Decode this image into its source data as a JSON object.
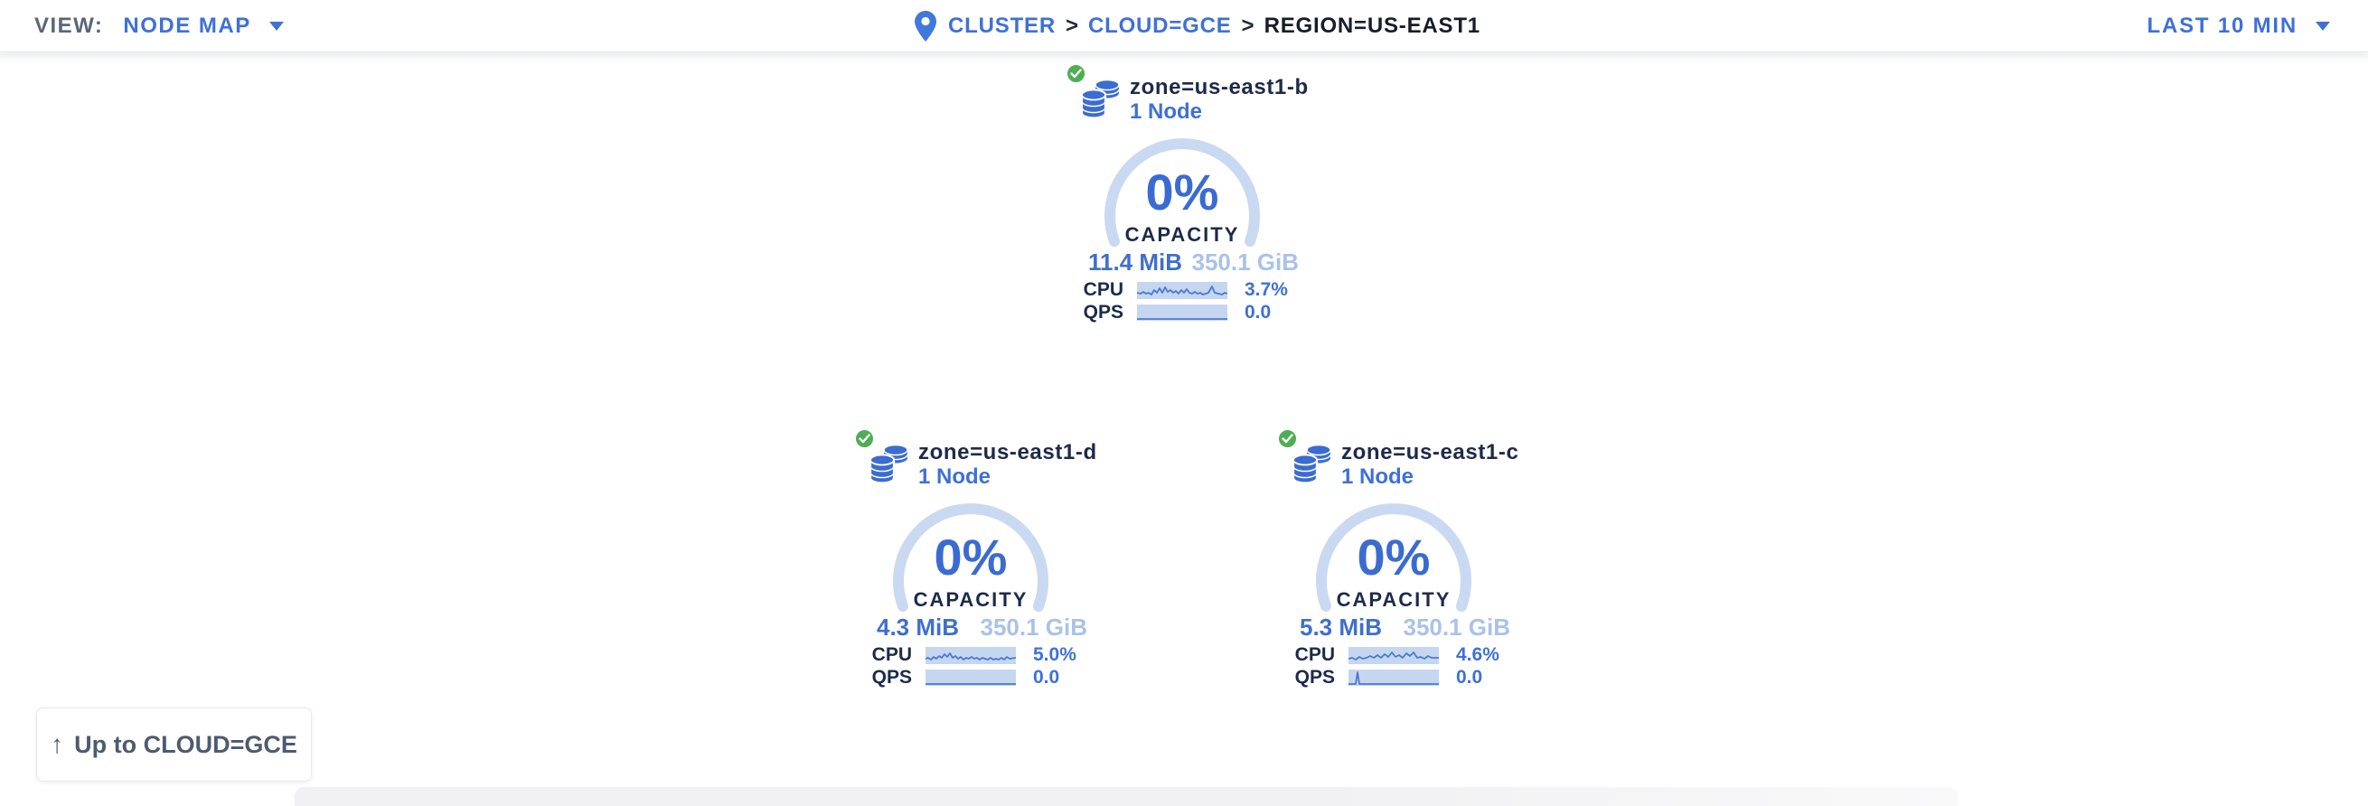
{
  "toolbar": {
    "view_label": "VIEW:",
    "view_value": "NODE MAP",
    "time_range": "LAST 10 MIN"
  },
  "breadcrumb": {
    "separator": ">",
    "items": [
      {
        "label": "CLUSTER"
      },
      {
        "label": "CLOUD=GCE"
      },
      {
        "label": "REGION=US-EAST1"
      }
    ]
  },
  "up_button": {
    "arrow": "↑",
    "label": "Up to CLOUD=GCE"
  },
  "zones": [
    {
      "name": "zone=us-east1-b",
      "nodes": "1 Node",
      "capacity_pct": "0%",
      "capacity_label": "CAPACITY",
      "used": "11.4 MiB",
      "total": "350.1 GiB",
      "cpu_label": "CPU",
      "cpu_pct": "3.7%",
      "qps_label": "QPS",
      "qps_value": "0.0",
      "status": "healthy"
    },
    {
      "name": "zone=us-east1-d",
      "nodes": "1 Node",
      "capacity_pct": "0%",
      "capacity_label": "CAPACITY",
      "used": "4.3 MiB",
      "total": "350.1 GiB",
      "cpu_label": "CPU",
      "cpu_pct": "5.0%",
      "qps_label": "QPS",
      "qps_value": "0.0",
      "status": "healthy"
    },
    {
      "name": "zone=us-east1-c",
      "nodes": "1 Node",
      "capacity_pct": "0%",
      "capacity_label": "CAPACITY",
      "used": "5.3 MiB",
      "total": "350.1 GiB",
      "cpu_label": "CPU",
      "cpu_pct": "4.6%",
      "qps_label": "QPS",
      "qps_value": "0.0",
      "status": "healthy"
    }
  ],
  "colors": {
    "accent_blue": "#3f70d8",
    "light_blue_text": "#a9c2ea",
    "gauge_arc": "#c9d9f2",
    "spark_fill": "#c5d6f0",
    "spark_line": "#4a79d3",
    "healthy_green": "#4fae53",
    "dark_navy": "#1c2b4a"
  },
  "chart_data": [
    {
      "type": "line",
      "zone": "zone=us-east1-b",
      "capacity": {
        "pct": 0,
        "used": "11.4 MiB",
        "total": "350.1 GiB"
      },
      "series": [
        {
          "name": "CPU",
          "current": "3.7%",
          "points": [
            [
              0,
              12
            ],
            [
              4,
              13
            ],
            [
              7,
              11
            ],
            [
              10,
              13
            ],
            [
              13,
              12
            ],
            [
              16,
              14
            ],
            [
              19,
              9
            ],
            [
              22,
              12
            ],
            [
              25,
              7
            ],
            [
              28,
              12
            ],
            [
              31,
              6
            ],
            [
              34,
              11
            ],
            [
              37,
              9
            ],
            [
              40,
              12
            ],
            [
              43,
              10
            ],
            [
              46,
              13
            ],
            [
              49,
              9
            ],
            [
              52,
              12
            ],
            [
              55,
              8
            ],
            [
              58,
              12
            ],
            [
              61,
              13
            ],
            [
              64,
              11
            ],
            [
              67,
              13
            ],
            [
              70,
              12
            ],
            [
              73,
              14
            ],
            [
              76,
              13
            ],
            [
              79,
              12
            ],
            [
              83,
              5
            ],
            [
              86,
              12
            ],
            [
              90,
              13
            ],
            [
              94,
              14
            ],
            [
              97,
              12
            ],
            [
              100,
              13
            ]
          ]
        },
        {
          "name": "QPS",
          "current": "0.0",
          "points": [
            [
              0,
              16
            ],
            [
              100,
              16
            ]
          ]
        }
      ]
    },
    {
      "type": "line",
      "zone": "zone=us-east1-d",
      "capacity": {
        "pct": 0,
        "used": "4.3 MiB",
        "total": "350.1 GiB"
      },
      "series": [
        {
          "name": "CPU",
          "current": "5.0%",
          "points": [
            [
              0,
              13
            ],
            [
              3,
              12
            ],
            [
              6,
              14
            ],
            [
              9,
              11
            ],
            [
              12,
              13
            ],
            [
              15,
              10
            ],
            [
              18,
              12
            ],
            [
              21,
              8
            ],
            [
              24,
              11
            ],
            [
              27,
              7
            ],
            [
              30,
              12
            ],
            [
              33,
              10
            ],
            [
              36,
              13
            ],
            [
              39,
              11
            ],
            [
              42,
              14
            ],
            [
              45,
              12
            ],
            [
              48,
              13
            ],
            [
              51,
              11
            ],
            [
              54,
              13
            ],
            [
              57,
              12
            ],
            [
              60,
              14
            ],
            [
              63,
              12
            ],
            [
              66,
              13
            ],
            [
              69,
              14
            ],
            [
              72,
              12
            ],
            [
              75,
              14
            ],
            [
              78,
              13
            ],
            [
              81,
              14
            ],
            [
              84,
              12
            ],
            [
              87,
              14
            ],
            [
              90,
              11
            ],
            [
              93,
              13
            ],
            [
              100,
              12
            ]
          ]
        },
        {
          "name": "QPS",
          "current": "0.0",
          "points": [
            [
              0,
              16
            ],
            [
              100,
              16
            ]
          ]
        }
      ]
    },
    {
      "type": "line",
      "zone": "zone=us-east1-c",
      "capacity": {
        "pct": 0,
        "used": "5.3 MiB",
        "total": "350.1 GiB"
      },
      "series": [
        {
          "name": "CPU",
          "current": "4.6%",
          "points": [
            [
              0,
              13
            ],
            [
              4,
              12
            ],
            [
              8,
              14
            ],
            [
              12,
              11
            ],
            [
              16,
              13
            ],
            [
              20,
              12
            ],
            [
              24,
              10
            ],
            [
              28,
              12
            ],
            [
              32,
              9
            ],
            [
              36,
              12
            ],
            [
              40,
              8
            ],
            [
              44,
              11
            ],
            [
              48,
              6
            ],
            [
              52,
              11
            ],
            [
              56,
              9
            ],
            [
              60,
              12
            ],
            [
              64,
              7
            ],
            [
              68,
              10
            ],
            [
              72,
              6
            ],
            [
              76,
              12
            ],
            [
              80,
              11
            ],
            [
              84,
              13
            ],
            [
              88,
              10
            ],
            [
              92,
              12
            ],
            [
              100,
              12
            ]
          ]
        },
        {
          "name": "QPS",
          "current": "0.0",
          "points": [
            [
              0,
              16
            ],
            [
              8,
              16
            ],
            [
              10,
              3
            ],
            [
              12,
              16
            ],
            [
              100,
              16
            ]
          ]
        }
      ]
    }
  ]
}
